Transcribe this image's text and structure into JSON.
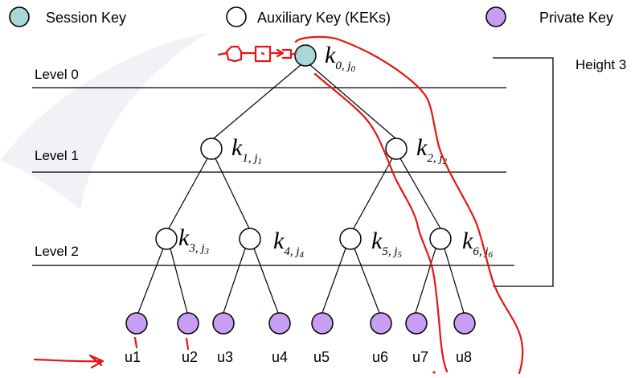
{
  "legend": {
    "session_key": "Session Key",
    "auxiliary_key": "Auxiliary Key (KEKs)",
    "private_key": "Private Key"
  },
  "colors": {
    "session_fill": "#a9d6d6",
    "private_fill": "#c79ef2",
    "aux_fill": "#ffffff",
    "annotation_ink": "#e81515",
    "watermark": "#eef0f3"
  },
  "levels": [
    "Level 0",
    "Level 1",
    "Level 2"
  ],
  "height_label": "Height 3",
  "keys": [
    {
      "index": "0",
      "sub": "j",
      "subsub": "0"
    },
    {
      "index": "1",
      "sub": "j",
      "subsub": "1"
    },
    {
      "index": "2",
      "sub": "j",
      "subsub": "2"
    },
    {
      "index": "3",
      "sub": "j",
      "subsub": "3"
    },
    {
      "index": "4",
      "sub": "j",
      "subsub": "4"
    },
    {
      "index": "5",
      "sub": "j",
      "subsub": "5"
    },
    {
      "index": "6",
      "sub": "j",
      "subsub": "6"
    }
  ],
  "key_letter": "k",
  "users": [
    "u1",
    "u2",
    "u3",
    "u4",
    "u5",
    "u6",
    "u7",
    "u8"
  ]
}
